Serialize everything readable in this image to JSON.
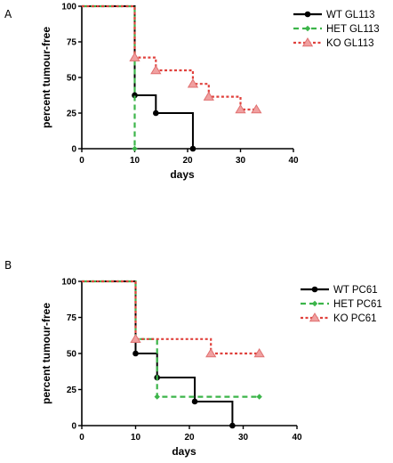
{
  "colors": {
    "wt": "#000000",
    "het": "#3cb54a",
    "ko": "#e0413c",
    "ko_marker_fill": "#f0a0a0",
    "ko_marker_stroke": "#e07070"
  },
  "chart_data": [
    {
      "panel": "A",
      "type": "line",
      "step": true,
      "xlabel": "days",
      "ylabel": "percent tumour-free",
      "xlim": [
        0,
        40
      ],
      "ylim": [
        0,
        100
      ],
      "xticks": [
        "0",
        "10",
        "20",
        "30",
        "40"
      ],
      "yticks": [
        "0",
        "25",
        "50",
        "75",
        "100"
      ],
      "legend_position": "top-right",
      "series": [
        {
          "name": "WT GL113",
          "key": "wt",
          "marker": "circle",
          "dash": "solid",
          "points": [
            [
              0,
              100
            ],
            [
              10,
              100
            ],
            [
              10,
              37.5
            ],
            [
              14,
              37.5
            ],
            [
              14,
              25
            ],
            [
              21,
              25
            ],
            [
              21,
              0
            ]
          ],
          "markers": [
            [
              10,
              37.5
            ],
            [
              14,
              25
            ],
            [
              21,
              0
            ]
          ]
        },
        {
          "name": "HET GL113",
          "key": "het",
          "marker": "diamond",
          "dash": "dashed",
          "points": [
            [
              0,
              100
            ],
            [
              10,
              100
            ],
            [
              10,
              0
            ]
          ],
          "markers": [
            [
              10,
              0
            ]
          ]
        },
        {
          "name": "KO GL113",
          "key": "ko",
          "marker": "triangle",
          "dash": "dotted",
          "points": [
            [
              0,
              100
            ],
            [
              10,
              100
            ],
            [
              10,
              64
            ],
            [
              14,
              64
            ],
            [
              14,
              55
            ],
            [
              21,
              55
            ],
            [
              21,
              45.5
            ],
            [
              24,
              45.5
            ],
            [
              24,
              36.5
            ],
            [
              30,
              36.5
            ],
            [
              30,
              27.5
            ],
            [
              33,
              27.5
            ]
          ],
          "markers": [
            [
              10,
              64
            ],
            [
              14,
              55
            ],
            [
              21,
              45.5
            ],
            [
              24,
              36.5
            ],
            [
              30,
              27.5
            ],
            [
              33,
              27.5
            ]
          ]
        }
      ]
    },
    {
      "panel": "B",
      "type": "line",
      "step": true,
      "xlabel": "days",
      "ylabel": "percent tumour-free",
      "xlim": [
        0,
        40
      ],
      "ylim": [
        0,
        100
      ],
      "xticks": [
        "0",
        "10",
        "20",
        "30",
        "40"
      ],
      "yticks": [
        "0",
        "25",
        "50",
        "75",
        "100"
      ],
      "legend_position": "top-right",
      "series": [
        {
          "name": "WT PC61",
          "key": "wt",
          "marker": "circle",
          "dash": "solid",
          "points": [
            [
              0,
              100
            ],
            [
              10,
              100
            ],
            [
              10,
              50
            ],
            [
              14,
              50
            ],
            [
              14,
              33.3
            ],
            [
              21,
              33.3
            ],
            [
              21,
              16.7
            ],
            [
              28,
              16.7
            ],
            [
              28,
              0
            ]
          ],
          "markers": [
            [
              10,
              50
            ],
            [
              14,
              33.3
            ],
            [
              21,
              16.7
            ],
            [
              28,
              0
            ]
          ]
        },
        {
          "name": "HET PC61",
          "key": "het",
          "marker": "diamond",
          "dash": "dashed",
          "points": [
            [
              0,
              100
            ],
            [
              10,
              100
            ],
            [
              10,
              60
            ],
            [
              14,
              60
            ],
            [
              14,
              20
            ],
            [
              33,
              20
            ]
          ],
          "markers": [
            [
              14,
              20
            ],
            [
              33,
              20
            ]
          ]
        },
        {
          "name": "KO PC61",
          "key": "ko",
          "marker": "triangle",
          "dash": "dotted",
          "points": [
            [
              0,
              100
            ],
            [
              10,
              100
            ],
            [
              10,
              60
            ],
            [
              24,
              60
            ],
            [
              24,
              50
            ],
            [
              33,
              50
            ]
          ],
          "markers": [
            [
              10,
              60
            ],
            [
              24,
              50
            ],
            [
              33,
              50
            ]
          ]
        }
      ]
    }
  ]
}
